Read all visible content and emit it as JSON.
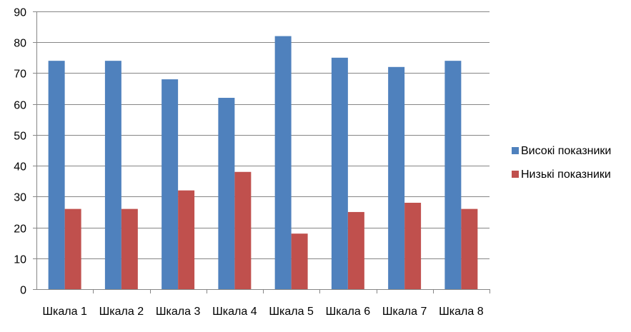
{
  "chart_data": {
    "type": "bar",
    "title": "",
    "xlabel": "",
    "ylabel": "",
    "ylim": [
      0,
      90
    ],
    "yticks": [
      0,
      10,
      20,
      30,
      40,
      50,
      60,
      70,
      80,
      90
    ],
    "grid": true,
    "legend_position": "right",
    "categories": [
      "Шкала 1",
      "Шкала 2",
      "Шкала 3",
      "Шкала 4",
      "Шкала 5",
      "Шкала 6",
      "Шкала 7",
      "Шкала 8"
    ],
    "series": [
      {
        "name": "Високі показники",
        "color": "#4F81BD",
        "values": [
          74,
          74,
          68,
          62,
          82,
          75,
          72,
          74
        ]
      },
      {
        "name": "Низькі показники",
        "color": "#C0504D",
        "values": [
          26,
          26,
          32,
          38,
          18,
          25,
          28,
          26
        ]
      }
    ]
  }
}
